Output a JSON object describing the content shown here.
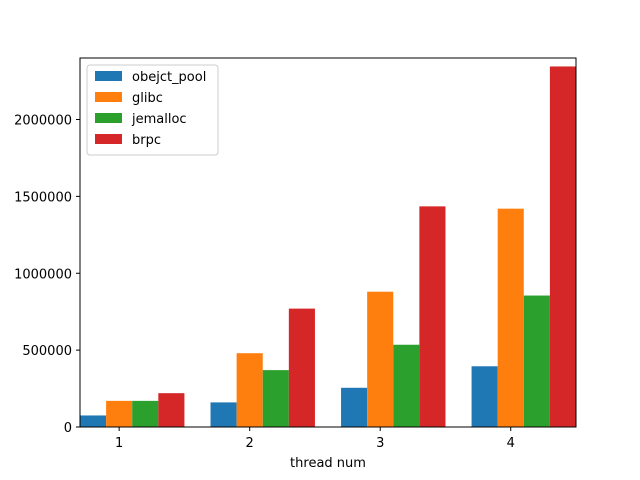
{
  "chart_data": {
    "type": "bar",
    "title": "",
    "xlabel": "thread num",
    "ylabel": "",
    "categories": [
      "1",
      "2",
      "3",
      "4"
    ],
    "ylim": [
      0,
      2400000
    ],
    "yticks": [
      0,
      500000,
      1000000,
      1500000,
      2000000
    ],
    "ytick_labels": [
      "0",
      "500000",
      "1000000",
      "1500000",
      "2000000"
    ],
    "grid": false,
    "legend_position": "top-left",
    "series": [
      {
        "name": "obejct_pool",
        "color": "#1f77b4",
        "values": [
          75000,
          160000,
          255000,
          395000
        ]
      },
      {
        "name": "glibc",
        "color": "#ff7f0e",
        "values": [
          170000,
          480000,
          880000,
          1420000
        ]
      },
      {
        "name": "jemalloc",
        "color": "#2ca02c",
        "values": [
          170000,
          370000,
          535000,
          855000
        ]
      },
      {
        "name": "brpc",
        "color": "#d62728",
        "values": [
          220000,
          770000,
          1435000,
          2345000
        ]
      }
    ]
  }
}
